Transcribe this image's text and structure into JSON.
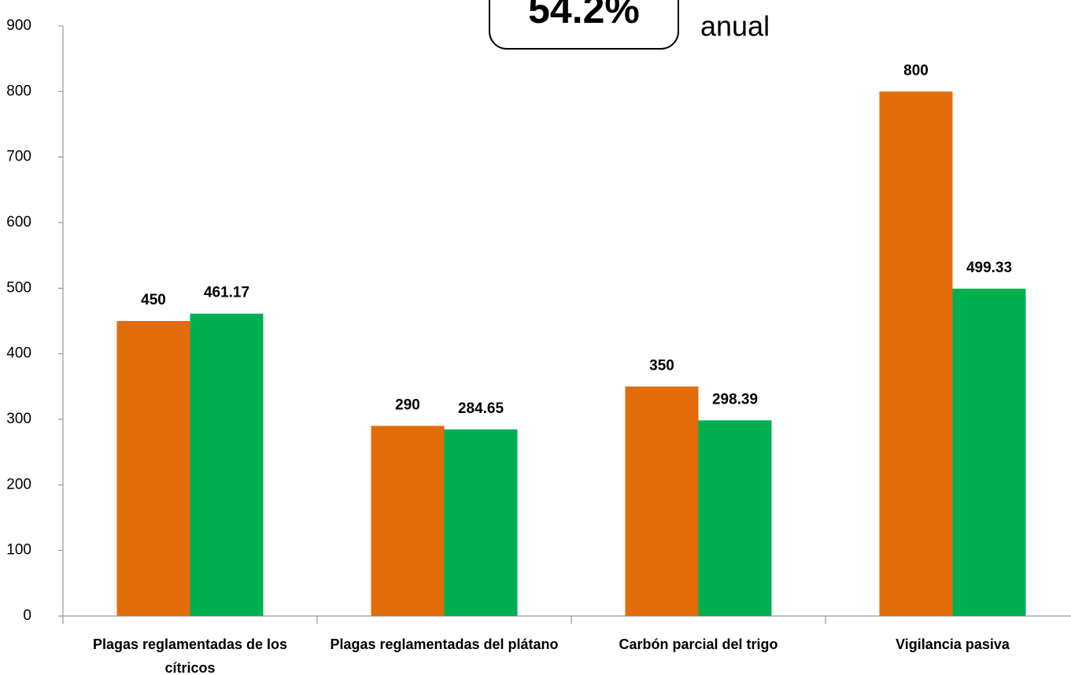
{
  "chart_data": {
    "type": "bar",
    "annotations": [
      "54.2%",
      "anual"
    ],
    "categories": [
      "Plagas reglamentadas de los cítricos",
      "Plagas reglamentadas del plátano",
      "Carbón parcial del trigo",
      "Vigilancia pasiva"
    ],
    "series": [
      {
        "color": "#e36c0a",
        "values": [
          450,
          290,
          350,
          800
        ]
      },
      {
        "color": "#00b050",
        "values": [
          461.17,
          284.65,
          298.39,
          499.33
        ]
      }
    ],
    "ylim": [
      0,
      900
    ],
    "yticks": [
      0,
      100,
      200,
      300,
      400,
      500,
      600,
      700,
      800,
      900
    ],
    "grid": false
  }
}
